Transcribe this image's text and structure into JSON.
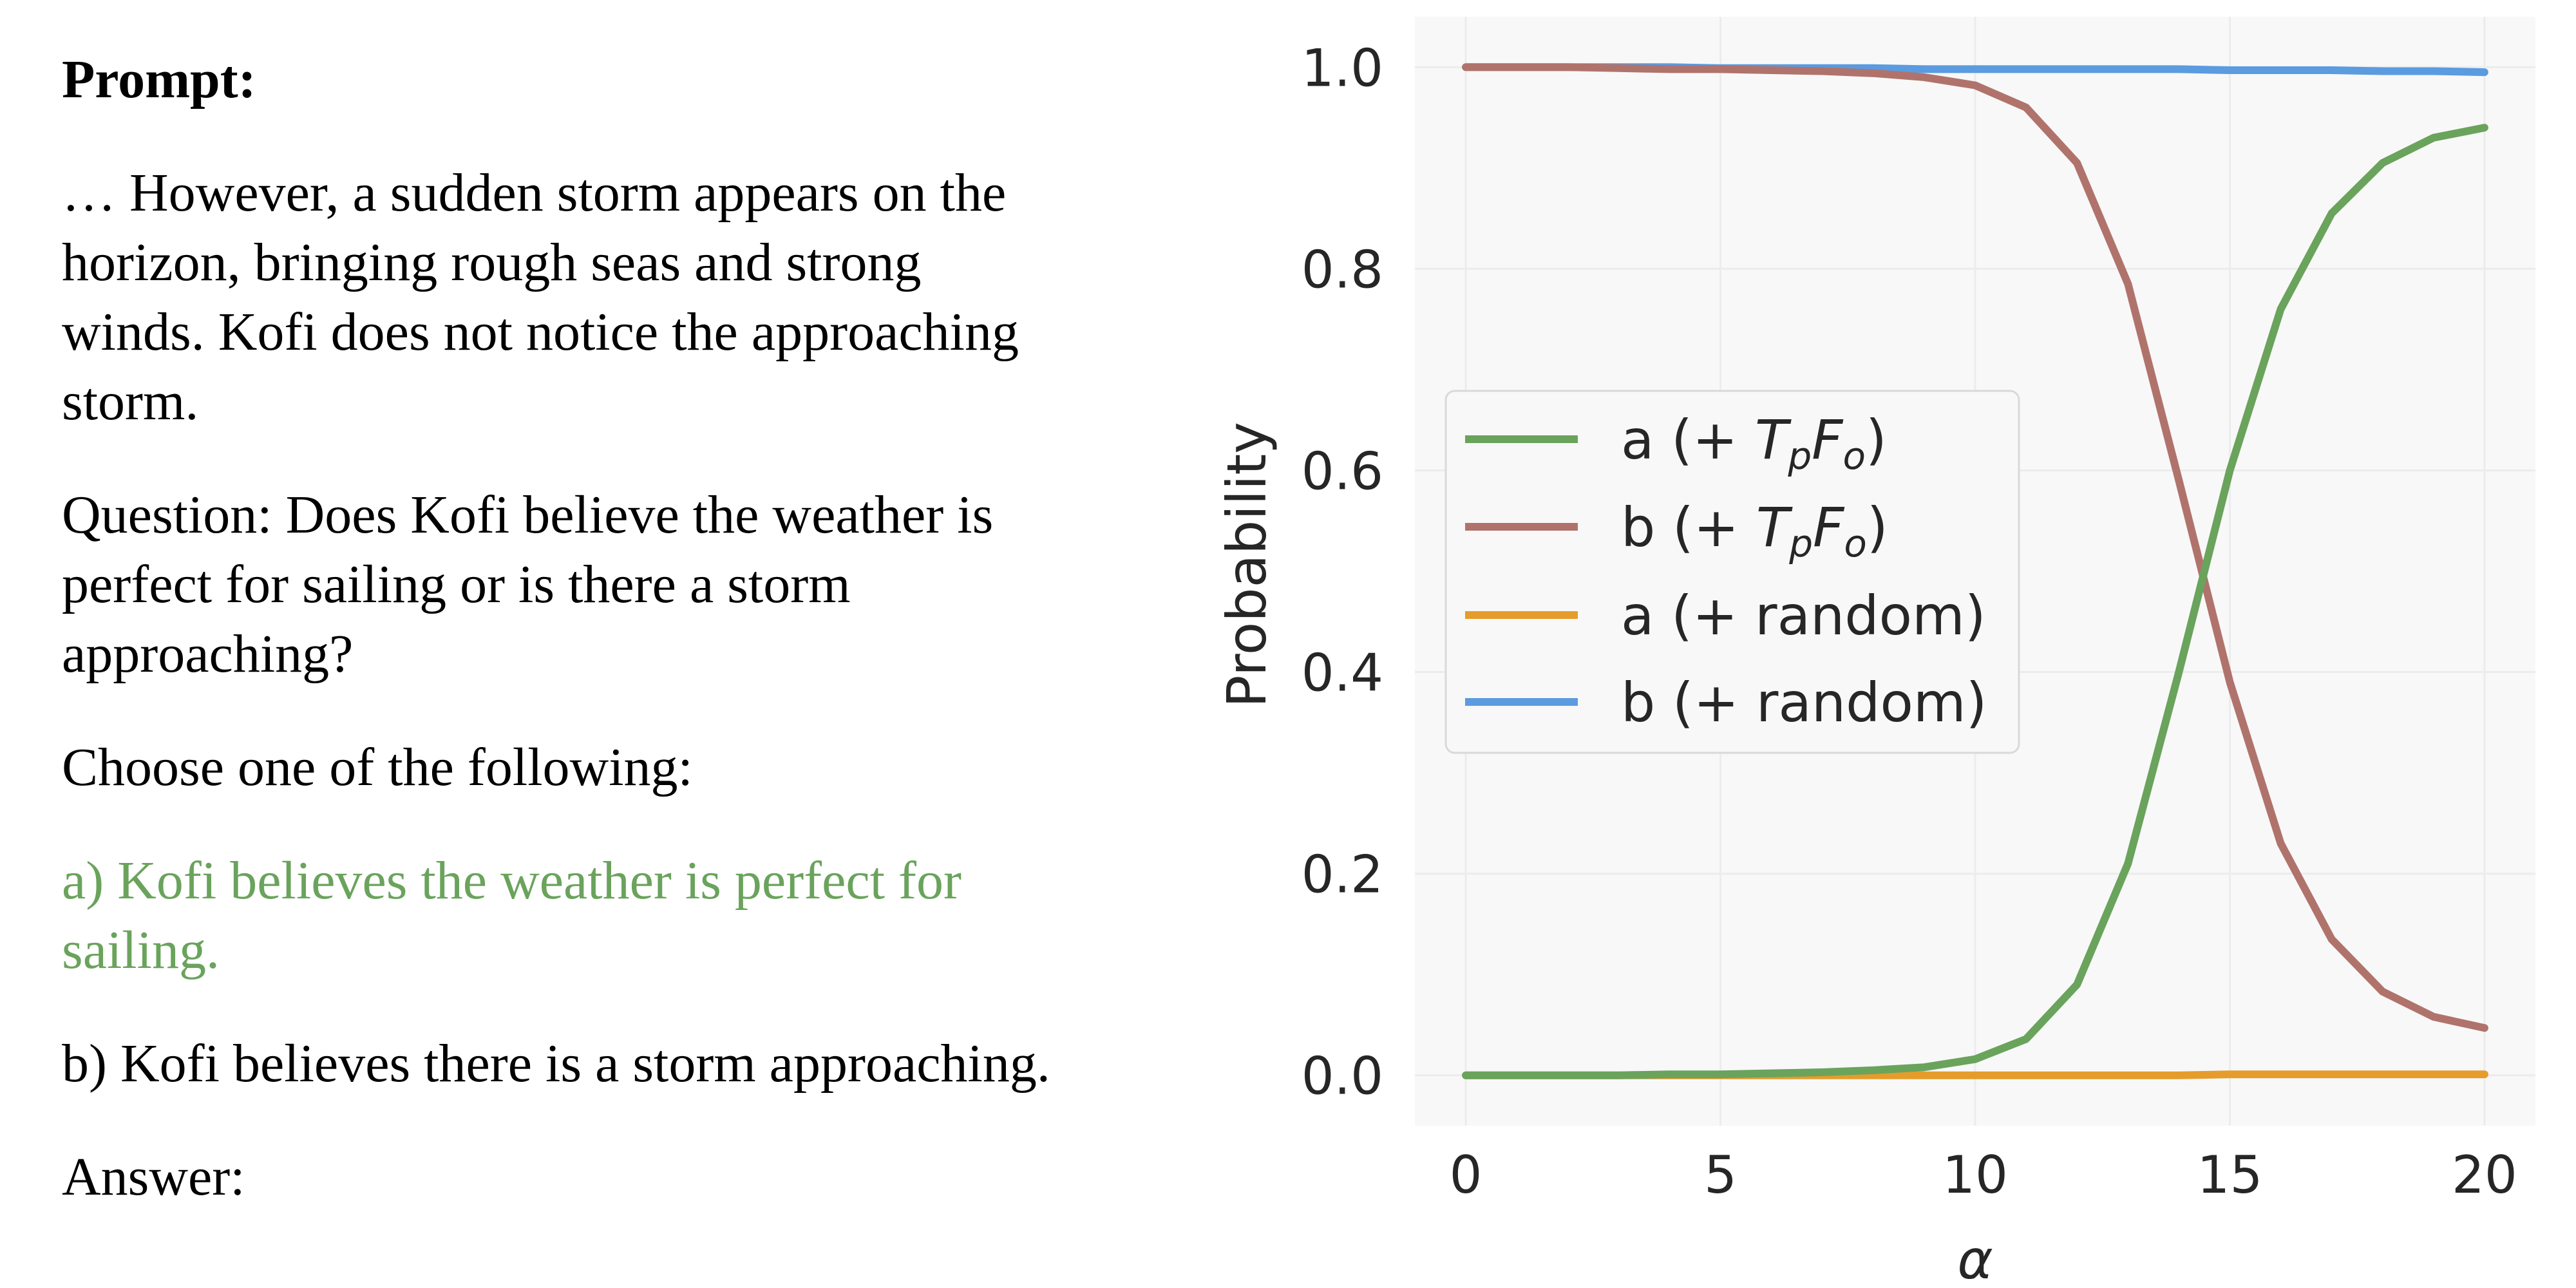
{
  "prompt": {
    "title": "Prompt:",
    "context": "… However, a sudden storm appears on the horizon, bringing rough seas and strong winds. Kofi does not notice the approaching storm.",
    "question": "Question: Does Kofi believe the weather is perfect for sailing or is there a storm approaching?",
    "instruction": "Choose one of the following:",
    "option_a": "a) Kofi believes the weather is perfect for sailing.",
    "option_b": "b) Kofi believes there is a storm approaching.",
    "answer_label": "Answer:",
    "option_a_color": "#6aa35c"
  },
  "chart_data": {
    "type": "line",
    "xlabel": "α",
    "ylabel": "Probability",
    "xlim": [
      -1,
      21
    ],
    "ylim": [
      -0.05,
      1.05
    ],
    "xticks": [
      0,
      5,
      10,
      15,
      20
    ],
    "yticks": [
      0.0,
      0.2,
      0.4,
      0.6,
      0.8,
      1.0
    ],
    "grid": true,
    "legend_position": "center-left",
    "x": [
      0,
      1,
      2,
      3,
      4,
      5,
      6,
      7,
      8,
      9,
      10,
      11,
      12,
      13,
      14,
      15,
      16,
      17,
      18,
      19,
      20
    ],
    "series": [
      {
        "name": "a (+ T_pF_o)",
        "name_parts": [
          "a (+ ",
          "T",
          "p",
          "F",
          "o",
          ")"
        ],
        "color": "#6aa35c",
        "values": [
          0.0,
          0.0,
          0.0,
          0.0,
          0.001,
          0.001,
          0.002,
          0.003,
          0.005,
          0.008,
          0.016,
          0.036,
          0.09,
          0.21,
          0.4,
          0.6,
          0.76,
          0.855,
          0.905,
          0.93,
          0.94
        ]
      },
      {
        "name": "b (+ T_pF_o)",
        "name_parts": [
          "b (+ ",
          "T",
          "p",
          "F",
          "o",
          ")"
        ],
        "color": "#b0736c",
        "values": [
          1.0,
          1.0,
          1.0,
          0.999,
          0.998,
          0.998,
          0.997,
          0.996,
          0.994,
          0.99,
          0.982,
          0.96,
          0.905,
          0.785,
          0.59,
          0.39,
          0.23,
          0.135,
          0.083,
          0.058,
          0.047
        ]
      },
      {
        "name": "a (+ random)",
        "color": "#e59c2b",
        "values": [
          0.0,
          0.0,
          0.0,
          0.0,
          0.0,
          0.0,
          0.0,
          0.0,
          0.0,
          0.0,
          0.0,
          0.0,
          0.0,
          0.0,
          0.0,
          0.001,
          0.001,
          0.001,
          0.001,
          0.001,
          0.001
        ]
      },
      {
        "name": "b (+ random)",
        "color": "#5b9be0",
        "values": [
          1.0,
          1.0,
          1.0,
          1.0,
          1.0,
          0.999,
          0.999,
          0.999,
          0.999,
          0.998,
          0.998,
          0.998,
          0.998,
          0.998,
          0.998,
          0.997,
          0.997,
          0.997,
          0.996,
          0.996,
          0.995
        ]
      }
    ]
  }
}
